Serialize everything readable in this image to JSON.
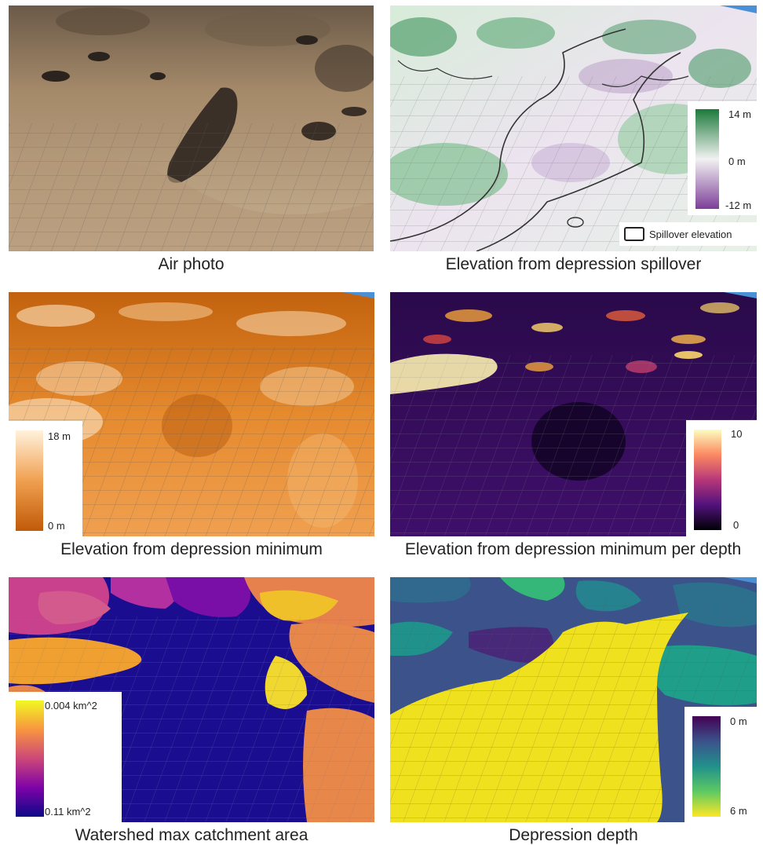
{
  "panels": [
    {
      "caption": "Air photo",
      "colors": {
        "sky": "#4a90d6",
        "base": "#a8896a",
        "dark": "#3a3028",
        "light": "#cdb89c"
      }
    },
    {
      "caption": "Elevation from depression spillover",
      "legend": {
        "max": "14 m",
        "mid": "0 m",
        "min": "-12 m",
        "top_color": "#1b7a3a",
        "mid_color": "#f2f2f2",
        "bottom_color": "#7d3f98"
      },
      "contour_label": "Spillover elevation"
    },
    {
      "caption": "Elevation from depression minimum",
      "legend": {
        "max": "18 m",
        "min": "0 m",
        "top_color": "#fff2dc",
        "bottom_color": "#c05a08"
      }
    },
    {
      "caption": "Elevation from depression minimum per depth",
      "legend": {
        "max": "10",
        "min": "0",
        "top_color": "#fcfdbf",
        "bottom_color": "#000004"
      }
    },
    {
      "caption": "Watershed max catchment area",
      "legend": {
        "max": "0.004 km^2",
        "min": "0.11 km^2",
        "top_color": "#f0f921",
        "bottom_color": "#0d0887"
      }
    },
    {
      "caption": "Depression depth",
      "legend": {
        "max": "0 m",
        "min": "6 m",
        "top_color": "#440154",
        "bottom_color": "#fde725"
      }
    }
  ]
}
